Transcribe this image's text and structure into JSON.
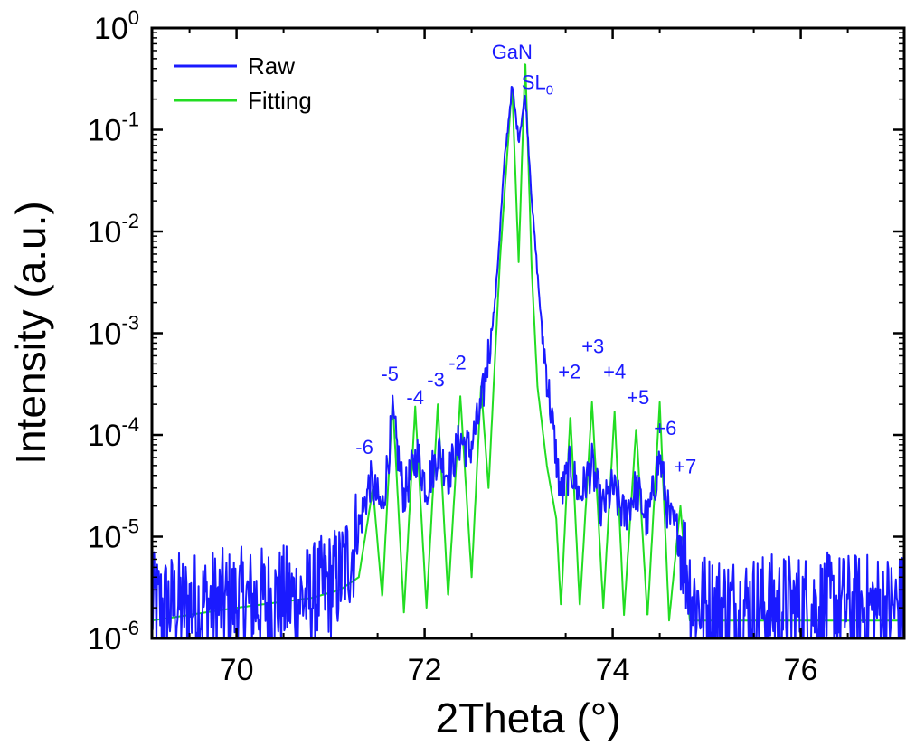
{
  "chart_data": {
    "type": "line",
    "xlabel": "2Theta (°)",
    "ylabel": "Intensity (a.u.)",
    "xlim": [
      69.1,
      77.1
    ],
    "ylim": [
      1e-06,
      1
    ],
    "yscale": "log",
    "x_ticks": [
      70,
      72,
      74,
      76
    ],
    "y_ticks": [
      {
        "value": 1e-06,
        "base": "10",
        "exp": "-6"
      },
      {
        "value": 1e-05,
        "base": "10",
        "exp": "-5"
      },
      {
        "value": 0.0001,
        "base": "10",
        "exp": "-4"
      },
      {
        "value": 0.001,
        "base": "10",
        "exp": "-3"
      },
      {
        "value": 0.01,
        "base": "10",
        "exp": "-2"
      },
      {
        "value": 0.1,
        "base": "10",
        "exp": "-1"
      },
      {
        "value": 1,
        "base": "10",
        "exp": "0"
      }
    ],
    "legend": {
      "position": "top-left"
    },
    "series": [
      {
        "name": "Raw",
        "color": "#1a1aff",
        "noise_background": 2e-06,
        "points": [
          [
            69.1,
            2e-06
          ],
          [
            70.8,
            2.5e-06
          ],
          [
            71.1,
            4e-06
          ],
          [
            71.25,
            8e-06
          ],
          [
            71.42,
            3.5e-05
          ],
          [
            71.55,
            1.8e-05
          ],
          [
            71.66,
            0.00015
          ],
          [
            71.78,
            2.5e-05
          ],
          [
            71.92,
            6.5e-05
          ],
          [
            72.02,
            3e-05
          ],
          [
            72.15,
            7e-05
          ],
          [
            72.25,
            4e-05
          ],
          [
            72.38,
            9e-05
          ],
          [
            72.48,
            7e-05
          ],
          [
            72.6,
            0.00018
          ],
          [
            72.75,
            0.002
          ],
          [
            72.85,
            0.05
          ],
          [
            72.93,
            0.27
          ],
          [
            73.0,
            0.08
          ],
          [
            73.07,
            0.22
          ],
          [
            73.15,
            0.015
          ],
          [
            73.25,
            0.001
          ],
          [
            73.35,
            0.00015
          ],
          [
            73.45,
            2.5e-05
          ],
          [
            73.55,
            5e-05
          ],
          [
            73.65,
            2.5e-05
          ],
          [
            73.78,
            5e-05
          ],
          [
            73.88,
            1.8e-05
          ],
          [
            74.0,
            3e-05
          ],
          [
            74.12,
            1.6e-05
          ],
          [
            74.25,
            3e-05
          ],
          [
            74.37,
            1.4e-05
          ],
          [
            74.5,
            6e-05
          ],
          [
            74.6,
            1.5e-05
          ],
          [
            74.72,
            1e-05
          ],
          [
            74.85,
            2.5e-06
          ],
          [
            75.0,
            2e-06
          ],
          [
            77.1,
            2e-06
          ]
        ]
      },
      {
        "name": "Fitting",
        "color": "#22dd22",
        "points": [
          [
            69.1,
            1.5e-06
          ],
          [
            70.0,
            2e-06
          ],
          [
            70.8,
            2.5e-06
          ],
          [
            71.1,
            3e-06
          ],
          [
            71.3,
            4e-06
          ],
          [
            71.45,
            3e-05
          ],
          [
            71.55,
            2.5e-06
          ],
          [
            71.66,
            0.00022
          ],
          [
            71.78,
            1.8e-06
          ],
          [
            71.9,
            0.00019
          ],
          [
            72.02,
            2e-06
          ],
          [
            72.14,
            0.0002
          ],
          [
            72.25,
            2.5e-06
          ],
          [
            72.38,
            0.00024
          ],
          [
            72.5,
            4e-06
          ],
          [
            72.6,
            0.0003
          ],
          [
            72.68,
            3e-05
          ],
          [
            72.8,
            0.005
          ],
          [
            72.93,
            0.28
          ],
          [
            73.0,
            0.005
          ],
          [
            73.07,
            0.5
          ],
          [
            73.14,
            0.004
          ],
          [
            73.2,
            0.0003
          ],
          [
            73.3,
            5e-05
          ],
          [
            73.4,
            1.5e-05
          ],
          [
            73.45,
            2e-06
          ],
          [
            73.55,
            0.00016
          ],
          [
            73.65,
            2e-06
          ],
          [
            73.78,
            0.00021
          ],
          [
            73.9,
            2e-06
          ],
          [
            74.02,
            0.00017
          ],
          [
            74.12,
            1.7e-06
          ],
          [
            74.25,
            0.00012
          ],
          [
            74.37,
            1.6e-06
          ],
          [
            74.5,
            0.00021
          ],
          [
            74.6,
            1.5e-06
          ],
          [
            74.72,
            2e-05
          ],
          [
            74.82,
            1.5e-06
          ],
          [
            75.0,
            1.5e-06
          ],
          [
            77.1,
            1.5e-06
          ]
        ]
      }
    ],
    "annotations": [
      {
        "text": "GaN",
        "x": 72.93,
        "y": 0.5
      },
      {
        "text": "SL",
        "sub": "0",
        "x": 73.2,
        "y": 0.25
      },
      {
        "text": "-6",
        "x": 71.36,
        "y": 6.5e-05
      },
      {
        "text": "-5",
        "x": 71.63,
        "y": 0.00034
      },
      {
        "text": "-4",
        "x": 71.9,
        "y": 0.0002
      },
      {
        "text": "-3",
        "x": 72.12,
        "y": 0.0003
      },
      {
        "text": "-2",
        "x": 72.35,
        "y": 0.00044
      },
      {
        "text": "+2",
        "x": 73.54,
        "y": 0.00036
      },
      {
        "text": "+3",
        "x": 73.79,
        "y": 0.00064
      },
      {
        "text": "+4",
        "x": 74.02,
        "y": 0.00036
      },
      {
        "text": "+5",
        "x": 74.27,
        "y": 0.0002
      },
      {
        "text": "+6",
        "x": 74.56,
        "y": 0.0001
      },
      {
        "text": "+7",
        "x": 74.77,
        "y": 4.2e-05
      }
    ]
  }
}
